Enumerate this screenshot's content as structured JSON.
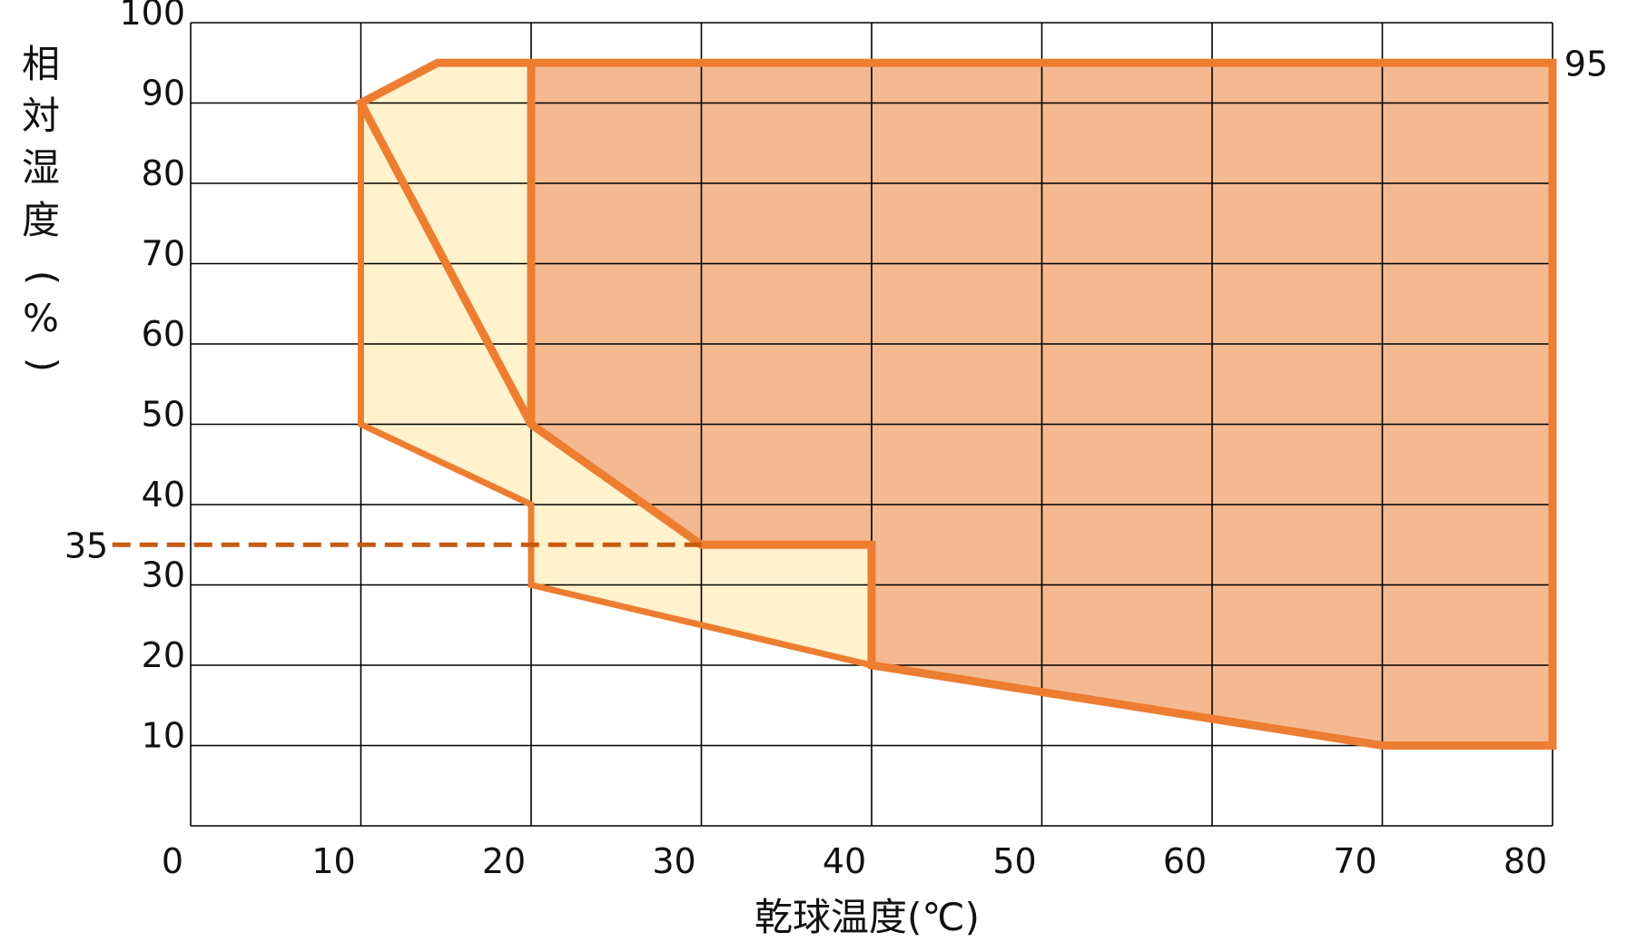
{
  "chart_data": {
    "type": "area",
    "xlabel": "乾球温度(℃)",
    "ylabel": "相対湿度(%)",
    "ylabel_chars": [
      "相",
      "対",
      "湿",
      "度",
      "(",
      "%",
      ")"
    ],
    "xlim": [
      0,
      80
    ],
    "ylim": [
      0,
      100
    ],
    "x_ticks": [
      0,
      10,
      20,
      30,
      40,
      50,
      60,
      70,
      80
    ],
    "y_ticks": [
      10,
      20,
      30,
      40,
      50,
      60,
      70,
      80,
      90,
      100
    ],
    "grid": true,
    "colors": {
      "outline": "#ED7D31",
      "light_fill": "#FFF2CC",
      "dark_fill": "#F4B990",
      "dashed": "#C55A11",
      "grid": "#000000"
    },
    "regions": [
      {
        "points": [
          [
            10,
            90
          ],
          [
            14.5,
            95
          ],
          [
            20,
            95
          ],
          [
            20,
            50
          ],
          [
            30,
            35
          ],
          [
            40,
            35
          ],
          [
            40,
            20
          ],
          [
            70,
            10
          ],
          [
            80,
            10
          ],
          [
            80,
            95
          ],
          [
            20,
            95
          ],
          [
            20,
            50
          ]
        ]
      },
      {
        "points": [
          [
            10,
            90
          ],
          [
            14.5,
            95
          ],
          [
            20,
            95
          ],
          [
            20,
            50
          ],
          [
            30,
            35
          ],
          [
            40,
            35
          ],
          [
            40,
            20
          ],
          [
            20,
            30
          ],
          [
            20,
            40
          ],
          [
            10,
            50
          ]
        ]
      }
    ],
    "reference_line": {
      "y": 35,
      "x_from": -4.6,
      "x_to": 30
    },
    "annotations": [
      {
        "text": "95",
        "y": 95
      },
      {
        "text": "35",
        "y": 35
      }
    ]
  }
}
